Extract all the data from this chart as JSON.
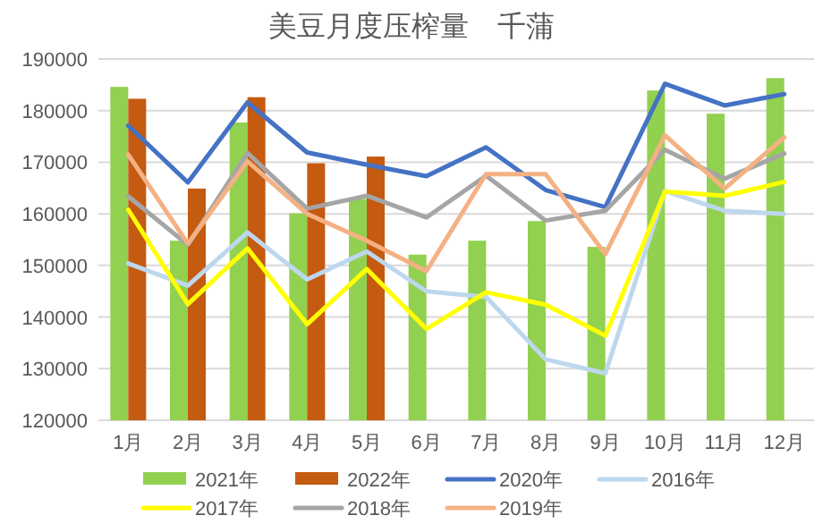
{
  "chart_data": {
    "type": "bar",
    "title": "美豆月度压榨量　千蒲",
    "categories": [
      "1月",
      "2月",
      "3月",
      "4月",
      "5月",
      "6月",
      "7月",
      "8月",
      "9月",
      "10月",
      "11月",
      "12月"
    ],
    "series": [
      {
        "name": "2021年",
        "color": "#92d050",
        "values": [
          184600,
          154800,
          177700,
          160100,
          162900,
          152100,
          154800,
          158600,
          153600,
          183900,
          179400,
          186300
        ]
      },
      {
        "name": "2022年",
        "color": "#c55a11",
        "values": [
          182300,
          164900,
          182600,
          169800,
          171100,
          null,
          null,
          null,
          null,
          null,
          null,
          null
        ]
      },
      {
        "name": "2020年",
        "type": "line",
        "color": "#4472c4",
        "values": [
          177100,
          166100,
          181600,
          171900,
          169500,
          167300,
          172900,
          164600,
          161300,
          185200,
          181000,
          183200
        ]
      },
      {
        "name": "2016年",
        "type": "line",
        "color": "#bdd7ee",
        "values": [
          150400,
          146100,
          156400,
          147300,
          152700,
          145000,
          143900,
          131800,
          129100,
          164400,
          160600,
          160000
        ]
      },
      {
        "name": "2017年",
        "type": "line",
        "color": "#ffff00",
        "values": [
          160800,
          142500,
          153300,
          138600,
          149300,
          137700,
          144800,
          142400,
          136400,
          164300,
          163500,
          166200
        ]
      },
      {
        "name": "2018年",
        "type": "line",
        "color": "#a5a5a5",
        "values": [
          163400,
          154000,
          171800,
          161000,
          163500,
          159300,
          167400,
          158700,
          160600,
          172400,
          166800,
          171700
        ]
      },
      {
        "name": "2019年",
        "type": "line",
        "color": "#f4b183",
        "values": [
          171500,
          154200,
          170200,
          160000,
          154800,
          148900,
          167700,
          167700,
          152200,
          175200,
          164900,
          174800
        ]
      }
    ],
    "ylim": [
      120000,
      190000
    ],
    "yticks": [
      120000,
      130000,
      140000,
      150000,
      160000,
      170000,
      180000,
      190000
    ],
    "grid": "y",
    "legend": "bottom",
    "marker": "none",
    "line_style": "solid"
  }
}
